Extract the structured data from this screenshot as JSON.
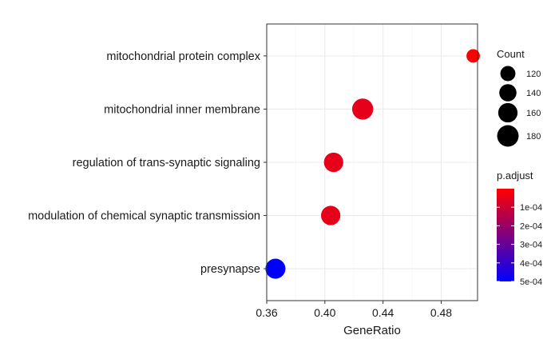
{
  "chart_data": {
    "type": "scatter",
    "subtype": "dotplot",
    "title": "",
    "xlabel": "GeneRatio",
    "ylabel": "",
    "xlim": [
      0.36,
      0.505
    ],
    "x_ticks": [
      0.36,
      0.4,
      0.44,
      0.48
    ],
    "x_tick_labels": [
      "0.36",
      "0.40",
      "0.44",
      "0.48"
    ],
    "grid": true,
    "categories": [
      "mitochondrial protein complex",
      "mitochondrial inner membrane",
      "regulation of trans-synaptic signaling",
      "modulation of chemical synaptic transmission",
      "presynapse"
    ],
    "points": [
      {
        "term": "mitochondrial protein complex",
        "gene_ratio": 0.502,
        "count": 105,
        "p_adjust": 2e-06
      },
      {
        "term": "mitochondrial inner membrane",
        "gene_ratio": 0.426,
        "count": 176,
        "p_adjust": 5e-05
      },
      {
        "term": "regulation of trans-synaptic signaling",
        "gene_ratio": 0.406,
        "count": 160,
        "p_adjust": 5e-05
      },
      {
        "term": "modulation of chemical synaptic transmission",
        "gene_ratio": 0.404,
        "count": 160,
        "p_adjust": 5e-05
      },
      {
        "term": "presynapse",
        "gene_ratio": 0.366,
        "count": 166,
        "p_adjust": 0.0005
      }
    ],
    "size_legend": {
      "title": "Count",
      "values": [
        120,
        140,
        160,
        180
      ],
      "labels": [
        "120",
        "140",
        "160",
        "180"
      ]
    },
    "color_legend": {
      "title": "p.adjust",
      "range": [
        0.0,
        0.0005
      ],
      "ticks": [
        0.0001,
        0.0002,
        0.0003,
        0.0004,
        0.0005
      ],
      "tick_labels": [
        "1e-04",
        "2e-04",
        "3e-04",
        "4e-04",
        "5e-04"
      ],
      "low_color": "#ff0000",
      "high_color": "#0000ff"
    },
    "colors": {
      "panel_border": "#333333",
      "grid_major": "#ebebeb",
      "grid_minor": "#f5f5f5"
    }
  }
}
